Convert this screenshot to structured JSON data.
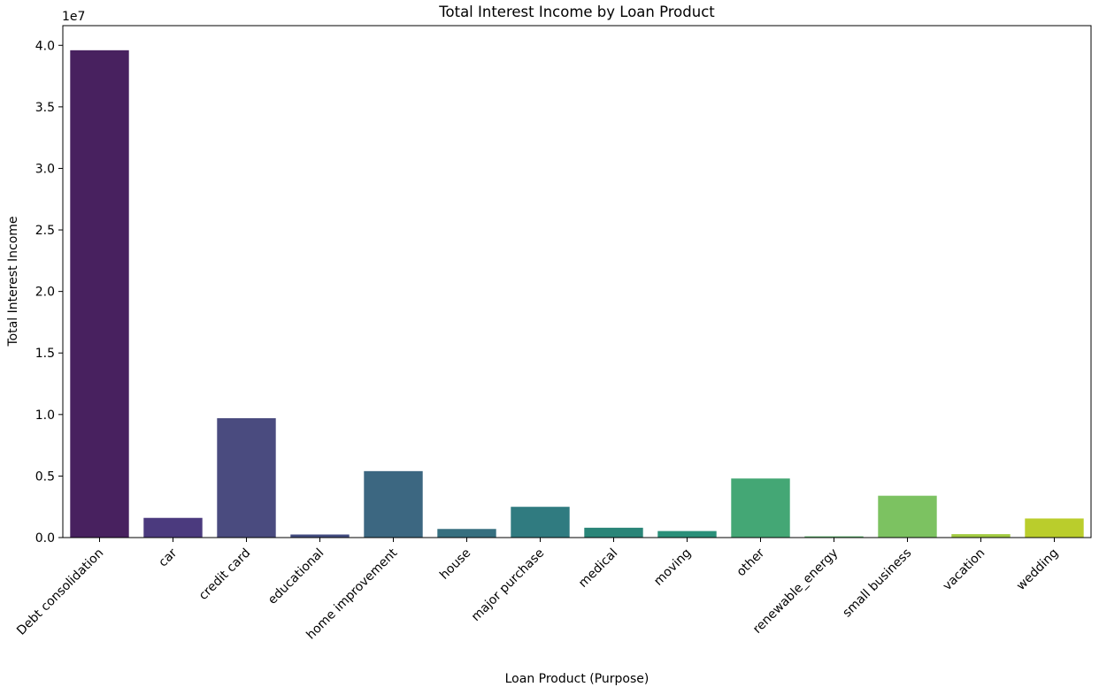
{
  "chart_data": {
    "type": "bar",
    "title": "Total Interest Income by Loan Product",
    "xlabel": "Loan Product (Purpose)",
    "ylabel": "Total Interest Income",
    "y_offset_label": "1e7",
    "categories": [
      "Debt consolidation",
      "car",
      "credit card",
      "educational",
      "home improvement",
      "house",
      "major purchase",
      "medical",
      "moving",
      "other",
      "renewable_energy",
      "small business",
      "vacation",
      "wedding"
    ],
    "values": [
      39600000,
      1600000,
      9700000,
      250000,
      5400000,
      700000,
      2500000,
      800000,
      530000,
      4800000,
      100000,
      3400000,
      280000,
      1550000
    ],
    "colors": [
      "#48215f",
      "#4b3a7e",
      "#4a4b7f",
      "#424c80",
      "#3c6781",
      "#366f7f",
      "#307b80",
      "#2a8578",
      "#2a8f79",
      "#44a775",
      "#5ab36a",
      "#7cc261",
      "#a2cb42",
      "#bacd2c"
    ],
    "y_ticks": [
      0,
      5000000,
      10000000,
      15000000,
      20000000,
      25000000,
      30000000,
      35000000,
      40000000
    ],
    "y_tick_labels": [
      "0.0",
      "0.5",
      "1.0",
      "1.5",
      "2.0",
      "2.5",
      "3.0",
      "3.5",
      "4.0"
    ],
    "ylim": [
      0,
      41600000
    ],
    "grid": false,
    "legend": "none"
  }
}
